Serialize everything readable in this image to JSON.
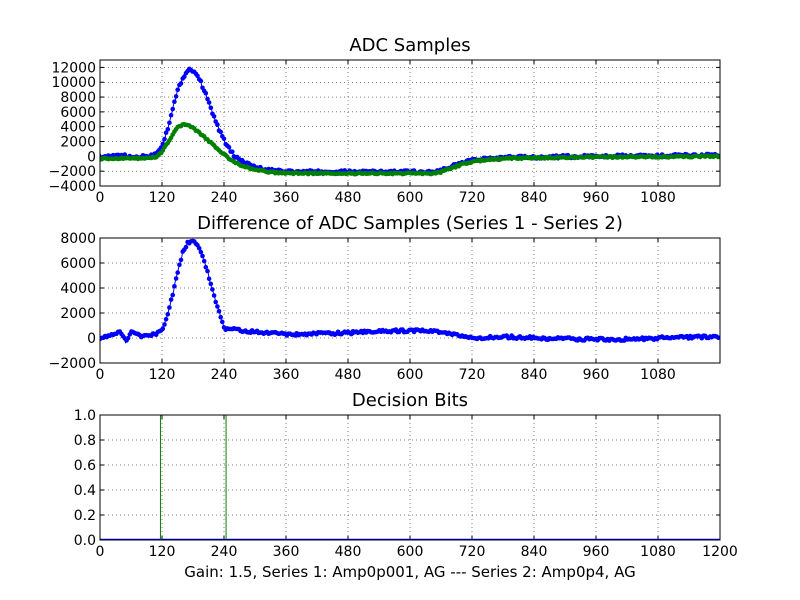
{
  "caption": "Gain: 1.5, Series 1: Amp0p001, AG --- Series 2: Amp0p4, AG",
  "chart_data": [
    {
      "type": "scatter",
      "title": "ADC Samples",
      "xlim": [
        0,
        1200
      ],
      "ylim": [
        -4000,
        13000
      ],
      "xticks": [
        "0",
        "120",
        "240",
        "360",
        "480",
        "600",
        "720",
        "840",
        "960",
        "1080"
      ],
      "yticks": [
        "−4000",
        "−2000",
        "0",
        "2000",
        "4000",
        "6000",
        "8000",
        "10000",
        "12000"
      ],
      "grid": true,
      "series": [
        {
          "color": "#0000ff",
          "marker": "dot",
          "x": [
            0,
            20,
            40,
            60,
            80,
            100,
            110,
            120,
            130,
            140,
            150,
            160,
            170,
            175,
            180,
            190,
            200,
            210,
            220,
            230,
            240,
            250,
            260,
            280,
            300,
            320,
            340,
            360,
            400,
            480,
            600,
            650,
            660,
            680,
            700,
            720,
            760,
            800,
            840,
            900,
            960,
            1080,
            1200
          ],
          "y": [
            0,
            -100,
            200,
            -200,
            0,
            100,
            500,
            1500,
            3500,
            6200,
            8800,
            10600,
            11600,
            11800,
            11600,
            10800,
            9200,
            7400,
            5400,
            3700,
            2200,
            1000,
            100,
            -900,
            -1500,
            -1800,
            -2000,
            -2050,
            -2100,
            -2100,
            -2100,
            -2100,
            -1900,
            -1400,
            -900,
            -500,
            -300,
            -150,
            -100,
            -50,
            0,
            50,
            150
          ]
        },
        {
          "color": "#008000",
          "marker": "dot",
          "x": [
            0,
            20,
            40,
            60,
            80,
            100,
            110,
            120,
            130,
            140,
            150,
            160,
            170,
            180,
            190,
            200,
            210,
            220,
            230,
            240,
            250,
            260,
            280,
            300,
            320,
            340,
            360,
            400,
            480,
            600,
            650,
            660,
            680,
            700,
            720,
            760,
            800,
            840,
            900,
            960,
            1080,
            1200
          ],
          "y": [
            -300,
            -300,
            -250,
            -250,
            -250,
            -200,
            0,
            600,
            1700,
            2900,
            3900,
            4300,
            4200,
            3800,
            3300,
            2700,
            2100,
            1500,
            900,
            300,
            -300,
            -800,
            -1400,
            -1800,
            -2050,
            -2200,
            -2250,
            -2300,
            -2300,
            -2300,
            -2300,
            -2100,
            -1600,
            -1100,
            -700,
            -400,
            -250,
            -200,
            -150,
            -100,
            -50,
            0
          ]
        }
      ]
    },
    {
      "type": "scatter",
      "title": "Difference of ADC Samples (Series 1 - Series 2)",
      "xlim": [
        0,
        1200
      ],
      "ylim": [
        -2000,
        8000
      ],
      "xticks": [
        "0",
        "120",
        "240",
        "360",
        "480",
        "600",
        "720",
        "840",
        "960",
        "1080"
      ],
      "yticks": [
        "−2000",
        "0",
        "2000",
        "4000",
        "6000",
        "8000"
      ],
      "grid": true,
      "series": [
        {
          "color": "#0000ff",
          "marker": "dot",
          "x": [
            0,
            20,
            40,
            50,
            60,
            80,
            100,
            120,
            130,
            140,
            150,
            160,
            170,
            180,
            190,
            200,
            210,
            220,
            230,
            240,
            250,
            300,
            360,
            420,
            480,
            540,
            600,
            660,
            700,
            720,
            780,
            840,
            900,
            960,
            1020,
            1080,
            1140,
            1200
          ],
          "y": [
            0,
            200,
            500,
            -300,
            600,
            100,
            200,
            600,
            1800,
            3400,
            5200,
            6800,
            7600,
            7800,
            7400,
            6400,
            5000,
            3500,
            2100,
            800,
            700,
            500,
            300,
            350,
            400,
            500,
            600,
            500,
            100,
            0,
            100,
            0,
            -50,
            -100,
            -100,
            0,
            50,
            100
          ]
        }
      ]
    },
    {
      "type": "line",
      "title": "Decision Bits",
      "xlim": [
        0,
        1200
      ],
      "ylim": [
        0.0,
        1.0
      ],
      "xticks": [
        "0",
        "120",
        "240",
        "360",
        "480",
        "600",
        "720",
        "840",
        "960",
        "1080",
        "1200"
      ],
      "yticks": [
        "0.0",
        "0.2",
        "0.4",
        "0.6",
        "0.8",
        "1.0"
      ],
      "grid": true,
      "series": [
        {
          "color": "#0000ff",
          "x": [
            0,
            1200
          ],
          "y": [
            0,
            0
          ]
        },
        {
          "color": "#008000",
          "x": [
            0,
            117,
            117,
            244,
            244,
            1200
          ],
          "y": [
            0,
            0,
            1,
            1,
            0,
            0
          ]
        }
      ]
    }
  ]
}
